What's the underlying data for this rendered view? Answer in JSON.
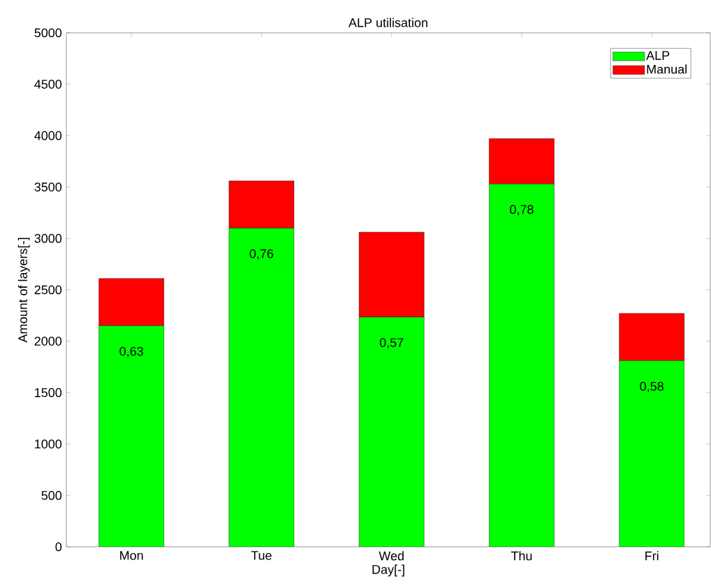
{
  "chart_data": {
    "type": "bar",
    "title": "ALP utilisation",
    "xlabel": "Day[-]",
    "ylabel": "Amount of layers[-]",
    "categories": [
      "Mon",
      "Tue",
      "Wed",
      "Thu",
      "Fri"
    ],
    "stacked": true,
    "series": [
      {
        "name": "ALP",
        "color": "#00ff00",
        "values": [
          2150,
          3100,
          2235,
          3530,
          1810
        ]
      },
      {
        "name": "Manual",
        "color": "#ff0000",
        "values": [
          460,
          460,
          825,
          440,
          460
        ]
      }
    ],
    "ylim": [
      0,
      5000
    ],
    "yticks": [
      0,
      500,
      1000,
      1500,
      2000,
      2500,
      3000,
      3500,
      4000,
      4500,
      5000
    ],
    "grid": false,
    "legend": "top right",
    "annotations": [
      "0,63",
      "0,76",
      "0,57",
      "0,78",
      "0,58"
    ]
  }
}
